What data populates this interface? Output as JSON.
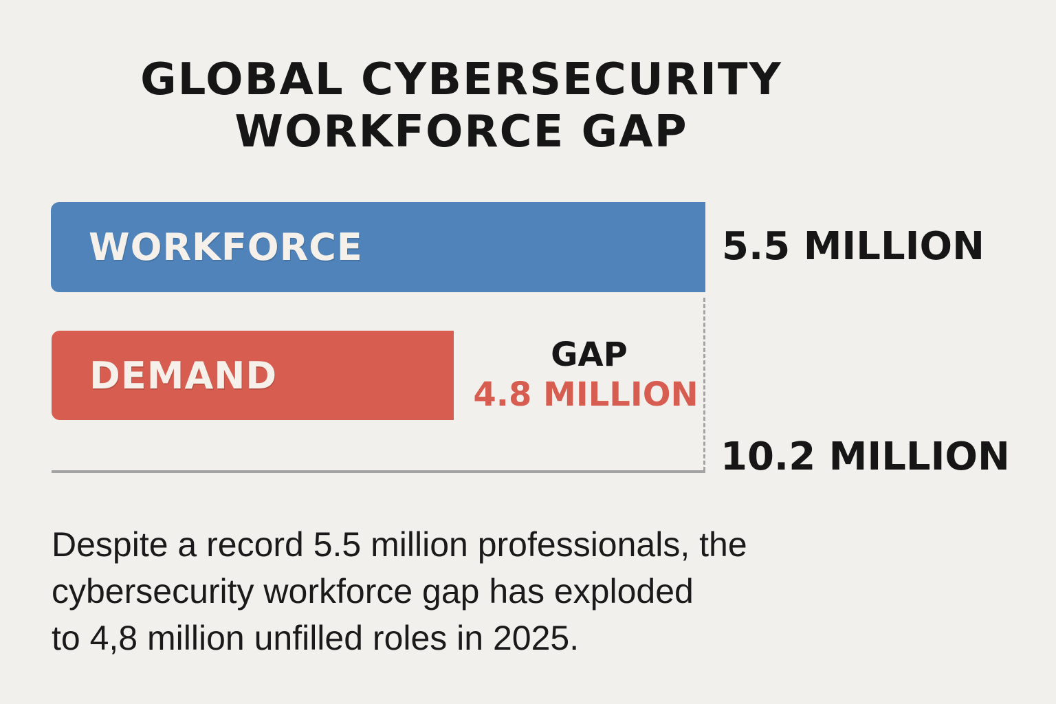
{
  "title": {
    "line1": "GLOBAL CYBERSECURITY",
    "line2": "WORKFORCE GAP"
  },
  "bars": [
    {
      "label": "WORKFORCE",
      "value_label": "5.5 MILLION",
      "color": "#4f83b9"
    },
    {
      "label": "DEMAND",
      "value_label": "10.2 MILLION",
      "color": "#d65d4f"
    }
  ],
  "gap": {
    "title": "GAP",
    "value": "4.8 MILLION",
    "color": "#d65d4f"
  },
  "caption": {
    "line1": "Despite a record 5.5 million professionals, the",
    "line2": "cybersecurity workforce gap has exploded",
    "line3": "to 4,8 million unfilled roles in 2025."
  },
  "chart_data": {
    "type": "bar",
    "orientation": "horizontal",
    "title": "GLOBAL CYBERSECURITY WORKFORCE GAP",
    "categories": [
      "WORKFORCE",
      "DEMAND"
    ],
    "values": [
      5.5,
      10.2
    ],
    "value_labels": [
      "5.5 MILLION",
      "10.2 MILLION"
    ],
    "units": "million",
    "annotations": [
      {
        "text": "GAP",
        "value": 4.8,
        "label": "4.8 MILLION"
      }
    ],
    "colors": {
      "WORKFORCE": "#4f83b9",
      "DEMAND": "#d65d4f"
    },
    "xlabel": "",
    "ylabel": "",
    "grid": false,
    "legend": "none",
    "caption": "Despite a record 5.5 million professionals, the cybersecurity workforce gap has exploded to 4,8 million unfilled roles in 2025."
  }
}
